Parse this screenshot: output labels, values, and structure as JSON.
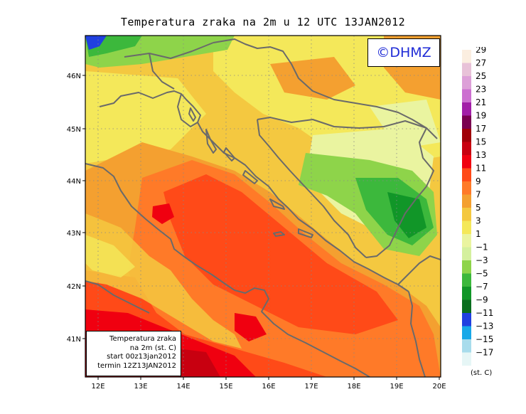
{
  "title": "Temperatura zraka na 2m u 12 UTC 13JAN2012",
  "copyright": "©DHMZ",
  "info_box": {
    "line1": "Temperatura zraka",
    "line2": "na 2m (st. C)",
    "line3": "start 00z13jan2012",
    "line4": "termin 12Z13JAN2012"
  },
  "lat_ticks": [
    "46N",
    "45N",
    "44N",
    "43N",
    "42N",
    "41N"
  ],
  "lon_ticks": [
    "12E",
    "13E",
    "14E",
    "15E",
    "16E",
    "17E",
    "18E",
    "19E",
    "20E"
  ],
  "legend": {
    "units": "(st. C)",
    "labels": [
      "29",
      "27",
      "25",
      "23",
      "21",
      "19",
      "17",
      "15",
      "13",
      "11",
      "9",
      "7",
      "5",
      "3",
      "1",
      "−1",
      "−3",
      "−5",
      "−7",
      "−9",
      "−11",
      "−13",
      "−15",
      "−17"
    ],
    "colors": [
      "#fbeee0",
      "#e8c2d8",
      "#dda0d8",
      "#cc6fd0",
      "#a21ea8",
      "#7a0050",
      "#a00008",
      "#c80010",
      "#f00010",
      "#ff4a18",
      "#ff7a28",
      "#f4a030",
      "#f4c840",
      "#f4e85a",
      "#eaf4a0",
      "#d4f09e",
      "#8ed44a",
      "#3cb83c",
      "#119628",
      "#0a6e1e",
      "#2040e0",
      "#18a8e8",
      "#a8dcec",
      "#e6f6f6"
    ]
  },
  "colors": {
    "coast": "#6a6a6a",
    "grid": "#888888",
    "copyright_text": "#1f2bd6"
  }
}
